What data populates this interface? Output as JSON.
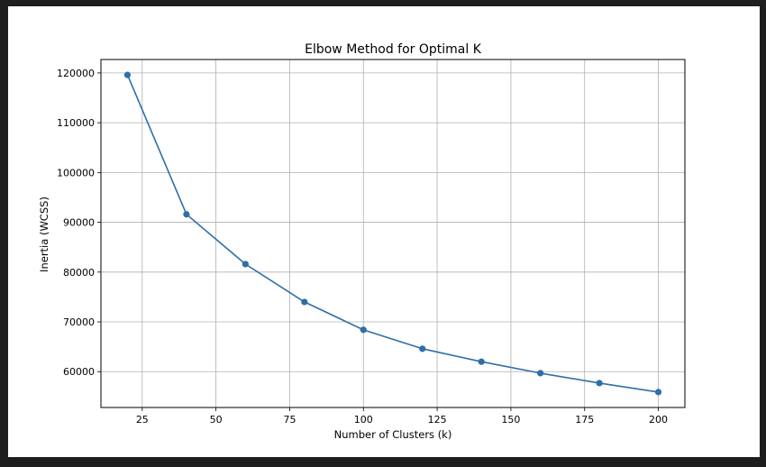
{
  "chart_data": {
    "type": "line",
    "title": "Elbow Method for Optimal K",
    "xlabel": "Number of Clusters (k)",
    "ylabel": "Inertia (WCSS)",
    "xlim": [
      11,
      209
    ],
    "ylim": [
      52800,
      122700
    ],
    "xticks": [
      25,
      50,
      75,
      100,
      125,
      150,
      175,
      200
    ],
    "yticks": [
      60000,
      70000,
      80000,
      90000,
      100000,
      110000,
      120000
    ],
    "grid": true,
    "series": [
      {
        "color": "#2f6ea8",
        "marker": "circle",
        "x": [
          20,
          40,
          60,
          80,
          100,
          120,
          140,
          160,
          180,
          200
        ],
        "y": [
          119600,
          91600,
          81600,
          74000,
          68400,
          64600,
          62000,
          59700,
          57700,
          55900
        ]
      }
    ]
  }
}
